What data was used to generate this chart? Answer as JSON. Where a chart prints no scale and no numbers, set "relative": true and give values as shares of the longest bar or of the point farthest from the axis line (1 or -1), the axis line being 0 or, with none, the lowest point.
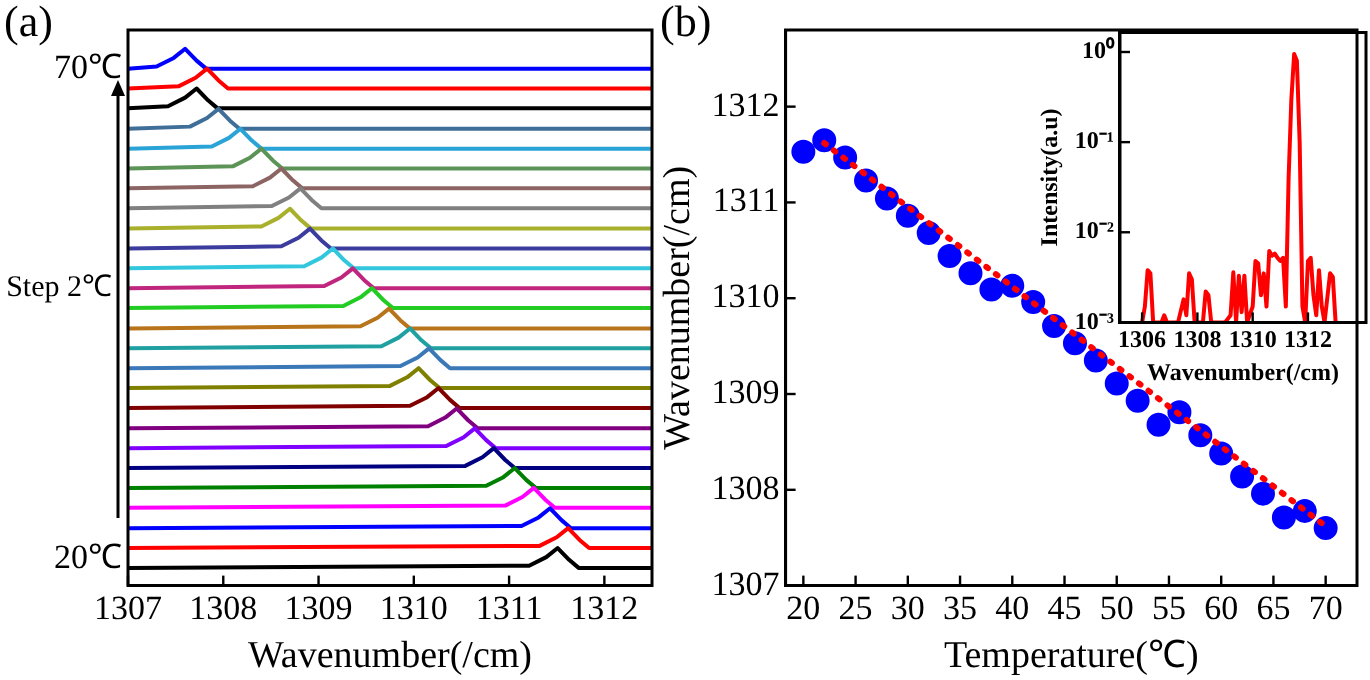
{
  "chart_data": [
    {
      "type": "line",
      "title": "(a)",
      "xlabel": "Wavenumber(/cm)",
      "relative": true,
      "xlim": [
        1307,
        1312.5
      ],
      "xticks": [
        1307,
        1308,
        1309,
        1310,
        1311,
        1312
      ],
      "grid": false,
      "legend": false,
      "annotations": [
        {
          "text": "70℃",
          "x": 1307,
          "y": 0.963
        },
        "Step 2℃",
        {
          "text": "20℃",
          "x": 1307,
          "y": 0.05
        }
      ],
      "series": [
        {
          "color": "#000000",
          "x": [
            1307,
            1311.21,
            1311.39,
            1311.51,
            1311.63,
            1311.73,
            1312.5
          ],
          "values": [
            0.033,
            0.037,
            0.053,
            0.07,
            0.048,
            0.033,
            0.033
          ]
        },
        {
          "color": "#ff0000",
          "x": [
            1307,
            1311.32,
            1311.5,
            1311.62,
            1311.74,
            1311.84,
            1312.5
          ],
          "values": [
            0.07,
            0.074,
            0.09,
            0.107,
            0.085,
            0.07,
            0.07
          ]
        },
        {
          "color": "#0000ff",
          "x": [
            1307,
            1311.13,
            1311.31,
            1311.43,
            1311.55,
            1311.65,
            1312.5
          ],
          "values": [
            0.107,
            0.111,
            0.127,
            0.144,
            0.122,
            0.107,
            0.107
          ]
        },
        {
          "color": "#ff00ff",
          "x": [
            1307,
            1310.96,
            1311.14,
            1311.26,
            1311.38,
            1311.48,
            1312.5
          ],
          "values": [
            0.145,
            0.149,
            0.165,
            0.182,
            0.16,
            0.145,
            0.145
          ]
        },
        {
          "color": "#008000",
          "x": [
            1307,
            1310.76,
            1310.94,
            1311.06,
            1311.18,
            1311.28,
            1312.5
          ],
          "values": [
            0.182,
            0.186,
            0.202,
            0.219,
            0.197,
            0.182,
            0.182
          ]
        },
        {
          "color": "#000080",
          "x": [
            1307,
            1310.54,
            1310.72,
            1310.84,
            1310.96,
            1311.06,
            1312.5
          ],
          "values": [
            0.219,
            0.223,
            0.239,
            0.256,
            0.234,
            0.219,
            0.219
          ]
        },
        {
          "color": "#8000ff",
          "x": [
            1307,
            1310.34,
            1310.52,
            1310.64,
            1310.76,
            1310.86,
            1312.5
          ],
          "values": [
            0.256,
            0.26,
            0.276,
            0.293,
            0.271,
            0.256,
            0.256
          ]
        },
        {
          "color": "#800080",
          "x": [
            1307,
            1310.15,
            1310.33,
            1310.45,
            1310.57,
            1310.67,
            1312.5
          ],
          "values": [
            0.293,
            0.297,
            0.313,
            0.33,
            0.308,
            0.293,
            0.293
          ]
        },
        {
          "color": "#800000",
          "x": [
            1307,
            1309.96,
            1310.14,
            1310.26,
            1310.38,
            1310.48,
            1312.5
          ],
          "values": [
            0.331,
            0.335,
            0.351,
            0.368,
            0.346,
            0.331,
            0.331
          ]
        },
        {
          "color": "#808000",
          "x": [
            1307,
            1309.75,
            1309.93,
            1310.05,
            1310.17,
            1310.27,
            1312.5
          ],
          "values": [
            0.368,
            0.372,
            0.388,
            0.405,
            0.383,
            0.368,
            0.368
          ]
        },
        {
          "color": "#3a78b8",
          "x": [
            1307,
            1309.86,
            1310.04,
            1310.16,
            1310.28,
            1310.38,
            1312.5
          ],
          "values": [
            0.405,
            0.409,
            0.425,
            0.442,
            0.42,
            0.405,
            0.405
          ]
        },
        {
          "color": "#20a0a0",
          "x": [
            1307,
            1309.66,
            1309.84,
            1309.96,
            1310.08,
            1310.18,
            1312.5
          ],
          "values": [
            0.442,
            0.446,
            0.462,
            0.479,
            0.457,
            0.442,
            0.442
          ]
        },
        {
          "color": "#b8741a",
          "x": [
            1307,
            1309.44,
            1309.62,
            1309.74,
            1309.86,
            1309.96,
            1312.5
          ],
          "values": [
            0.479,
            0.483,
            0.499,
            0.516,
            0.494,
            0.479,
            0.479
          ]
        },
        {
          "color": "#22cc22",
          "x": [
            1307,
            1309.26,
            1309.44,
            1309.56,
            1309.68,
            1309.78,
            1312.5
          ],
          "values": [
            0.517,
            0.521,
            0.537,
            0.554,
            0.532,
            0.517,
            0.517
          ]
        },
        {
          "color": "#c0267e",
          "x": [
            1307,
            1309.06,
            1309.24,
            1309.36,
            1309.48,
            1309.58,
            1312.5
          ],
          "values": [
            0.554,
            0.558,
            0.574,
            0.591,
            0.569,
            0.554,
            0.554
          ]
        },
        {
          "color": "#33c7dd",
          "x": [
            1307,
            1308.85,
            1309.03,
            1309.15,
            1309.27,
            1309.37,
            1312.5
          ],
          "values": [
            0.591,
            0.595,
            0.611,
            0.628,
            0.606,
            0.591,
            0.591
          ]
        },
        {
          "color": "#3c3c9e",
          "x": [
            1307,
            1308.61,
            1308.79,
            1308.91,
            1309.03,
            1309.13,
            1312.5
          ],
          "values": [
            0.628,
            0.632,
            0.648,
            0.665,
            0.643,
            0.628,
            0.628
          ]
        },
        {
          "color": "#a8b02c",
          "x": [
            1307,
            1308.4,
            1308.58,
            1308.7,
            1308.82,
            1308.92,
            1312.5
          ],
          "values": [
            0.665,
            0.669,
            0.685,
            0.702,
            0.68,
            0.665,
            0.665
          ]
        },
        {
          "color": "#808080",
          "x": [
            1307,
            1308.51,
            1308.69,
            1308.81,
            1308.93,
            1309.03,
            1312.5
          ],
          "values": [
            0.703,
            0.707,
            0.723,
            0.74,
            0.718,
            0.703,
            0.703
          ]
        },
        {
          "color": "#8c6464",
          "x": [
            1307,
            1308.31,
            1308.49,
            1308.61,
            1308.73,
            1308.83,
            1312.5
          ],
          "values": [
            0.74,
            0.744,
            0.76,
            0.777,
            0.755,
            0.74,
            0.74
          ]
        },
        {
          "color": "#5c9458",
          "x": [
            1307,
            1308.1,
            1308.28,
            1308.4,
            1308.52,
            1308.62,
            1312.5
          ],
          "values": [
            0.777,
            0.781,
            0.797,
            0.814,
            0.792,
            0.777,
            0.777
          ]
        },
        {
          "color": "#2aa4d6",
          "x": [
            1307,
            1307.88,
            1308.06,
            1308.18,
            1308.3,
            1308.4,
            1312.5
          ],
          "values": [
            0.814,
            0.818,
            0.834,
            0.851,
            0.829,
            0.814,
            0.814
          ]
        },
        {
          "color": "#3f6f99",
          "x": [
            1307,
            1307.65,
            1307.83,
            1307.95,
            1308.07,
            1308.17,
            1312.5
          ],
          "values": [
            0.851,
            0.855,
            0.871,
            0.888,
            0.866,
            0.851,
            0.851
          ]
        },
        {
          "color": "#000000",
          "x": [
            1307,
            1307.42,
            1307.6,
            1307.72,
            1307.84,
            1307.94,
            1312.5
          ],
          "values": [
            0.889,
            0.893,
            0.909,
            0.926,
            0.904,
            0.889,
            0.889
          ]
        },
        {
          "color": "#ff0000",
          "x": [
            1307,
            1307.53,
            1307.71,
            1307.83,
            1307.95,
            1308.05,
            1312.5
          ],
          "values": [
            0.926,
            0.93,
            0.946,
            0.963,
            0.941,
            0.926,
            0.926
          ]
        },
        {
          "color": "#0000ff",
          "x": [
            1307,
            1307.3,
            1307.48,
            1307.6,
            1307.72,
            1307.82,
            1312.5
          ],
          "values": [
            0.963,
            0.967,
            0.983,
            1.0,
            0.978,
            0.963,
            0.963
          ]
        }
      ]
    },
    {
      "type": "scatter",
      "title": "(b)",
      "xlabel": "Temperature(℃)",
      "ylabel": "Wavenumber(/cm)",
      "xlim": [
        18.3,
        73
      ],
      "xticks": [
        20,
        25,
        30,
        35,
        40,
        45,
        50,
        55,
        60,
        65,
        70
      ],
      "ylim": [
        1307,
        1312.8
      ],
      "yticks": [
        1307,
        1308,
        1309,
        1310,
        1311,
        1312
      ],
      "grid": false,
      "legend": false,
      "series": [
        {
          "type": "scatter",
          "marker": "circle",
          "color": "#0000ff",
          "x": [
            20,
            22,
            24,
            26,
            28,
            30,
            32,
            34,
            36,
            38,
            40,
            42,
            44,
            46,
            48,
            50,
            52,
            54,
            56,
            58,
            60,
            62,
            64,
            66,
            68,
            70
          ],
          "values": [
            1311.53,
            1311.65,
            1311.47,
            1311.23,
            1311.04,
            1310.86,
            1310.68,
            1310.44,
            1310.26,
            1310.09,
            1310.13,
            1309.96,
            1309.71,
            1309.53,
            1309.35,
            1309.11,
            1308.93,
            1308.68,
            1308.81,
            1308.57,
            1308.38,
            1308.14,
            1307.96,
            1307.71,
            1307.78,
            1307.6
          ]
        },
        {
          "type": "line",
          "line_style": "dotted",
          "color": "#ff0000",
          "x": [
            22,
            70
          ],
          "values": [
            1311.62,
            1307.62
          ]
        }
      ]
    },
    {
      "type": "line",
      "xlabel": "Wavenumber(/cm)",
      "ylabel": "Intensity(a.u)",
      "log": "y",
      "xlim": [
        1305.2,
        1314.1
      ],
      "xticks": [
        1306,
        1308,
        1310,
        1312
      ],
      "ylim": [
        0.001,
        1.65
      ],
      "yticks": [
        {
          "value": 0.001,
          "label": "10⁻³"
        },
        {
          "value": 0.01,
          "label": "10⁻²"
        },
        {
          "value": 0.1,
          "label": "10⁻¹"
        },
        {
          "value": 1,
          "label": "10⁰"
        }
      ],
      "grid": false,
      "legend": false,
      "series": [
        {
          "color": "#ff0000",
          "x": [
            1306.0,
            1306.1,
            1306.2,
            1306.3,
            1306.4,
            1306.7,
            1306.8,
            1306.9,
            1307.3,
            1307.5,
            1307.6,
            1307.7,
            1307.8,
            1307.9,
            1308.2,
            1308.3,
            1308.4,
            1308.5,
            1309.0,
            1309.2,
            1309.3,
            1309.4,
            1309.5,
            1309.6,
            1309.7,
            1309.8,
            1310.0,
            1310.1,
            1310.2,
            1310.3,
            1310.4,
            1310.5,
            1310.6,
            1310.7,
            1310.8,
            1310.9,
            1311.0,
            1311.1,
            1311.2,
            1311.3,
            1311.4,
            1311.5,
            1311.6,
            1311.7,
            1311.8,
            1311.9,
            1312.0,
            1312.1,
            1312.2,
            1312.3,
            1312.4,
            1312.5,
            1312.6,
            1312.8,
            1312.9,
            1313.0
          ],
          "values": [
            0.001,
            0.0015,
            0.0038,
            0.0035,
            0.001,
            0.001,
            0.0012,
            0.001,
            0.001,
            0.0018,
            0.0012,
            0.0035,
            0.003,
            0.001,
            0.001,
            0.0022,
            0.002,
            0.001,
            0.001,
            0.0012,
            0.0036,
            0.001,
            0.0033,
            0.0013,
            0.0033,
            0.001,
            0.0015,
            0.0048,
            0.0045,
            0.002,
            0.0035,
            0.0015,
            0.0062,
            0.0055,
            0.0058,
            0.0052,
            0.0048,
            0.0052,
            0.0015,
            0.04,
            0.3,
            0.95,
            0.8,
            0.1,
            0.0015,
            0.001,
            0.0048,
            0.0052,
            0.002,
            0.0012,
            0.0038,
            0.0015,
            0.001,
            0.0035,
            0.0032,
            0.001
          ]
        }
      ]
    }
  ]
}
